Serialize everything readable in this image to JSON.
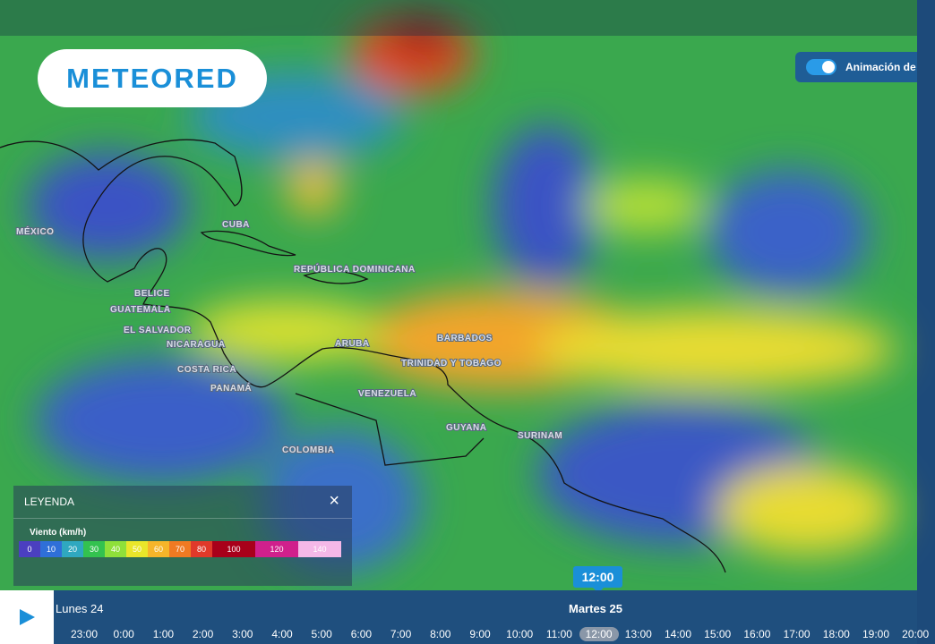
{
  "header": {
    "logo": "METEORED",
    "toggle_label": "Animación de"
  },
  "map": {
    "labels": [
      "MÉXICO",
      "CUBA",
      "REPÚBLICA DOMINICANA",
      "BELICE",
      "GUATEMALA",
      "EL SALVADOR",
      "NICARAGUA",
      "COSTA RICA",
      "PANAMÁ",
      "ARUBA",
      "BARBADOS",
      "TRINIDAD Y TOBAGO",
      "VENEZUELA",
      "COLOMBIA",
      "GUYANA",
      "SURINAM"
    ]
  },
  "legend": {
    "title": "LEYENDA",
    "unit": "Viento (km/h)",
    "close": "×",
    "items": [
      {
        "value": 0,
        "color": "#4b3fc0"
      },
      {
        "value": 10,
        "color": "#2f6fd8"
      },
      {
        "value": 20,
        "color": "#2fa8c0"
      },
      {
        "value": 30,
        "color": "#33c24f"
      },
      {
        "value": 40,
        "color": "#8fe03a"
      },
      {
        "value": 50,
        "color": "#e9e62a"
      },
      {
        "value": 60,
        "color": "#f6b52a"
      },
      {
        "value": 70,
        "color": "#f07a22"
      },
      {
        "value": 80,
        "color": "#e0392a"
      },
      {
        "value": 100,
        "color": "#a8001a"
      },
      {
        "value": 120,
        "color": "#d0208c"
      },
      {
        "value": 140,
        "color": "#f5b8e8"
      }
    ]
  },
  "timeline": {
    "days": [
      "Lunes 24",
      "Martes 25"
    ],
    "selected": "12:00",
    "hours": [
      "23:00",
      "0:00",
      "1:00",
      "2:00",
      "3:00",
      "4:00",
      "5:00",
      "6:00",
      "7:00",
      "8:00",
      "9:00",
      "10:00",
      "11:00",
      "12:00",
      "13:00",
      "14:00",
      "15:00",
      "16:00",
      "17:00",
      "18:00",
      "19:00",
      "20:00"
    ]
  }
}
